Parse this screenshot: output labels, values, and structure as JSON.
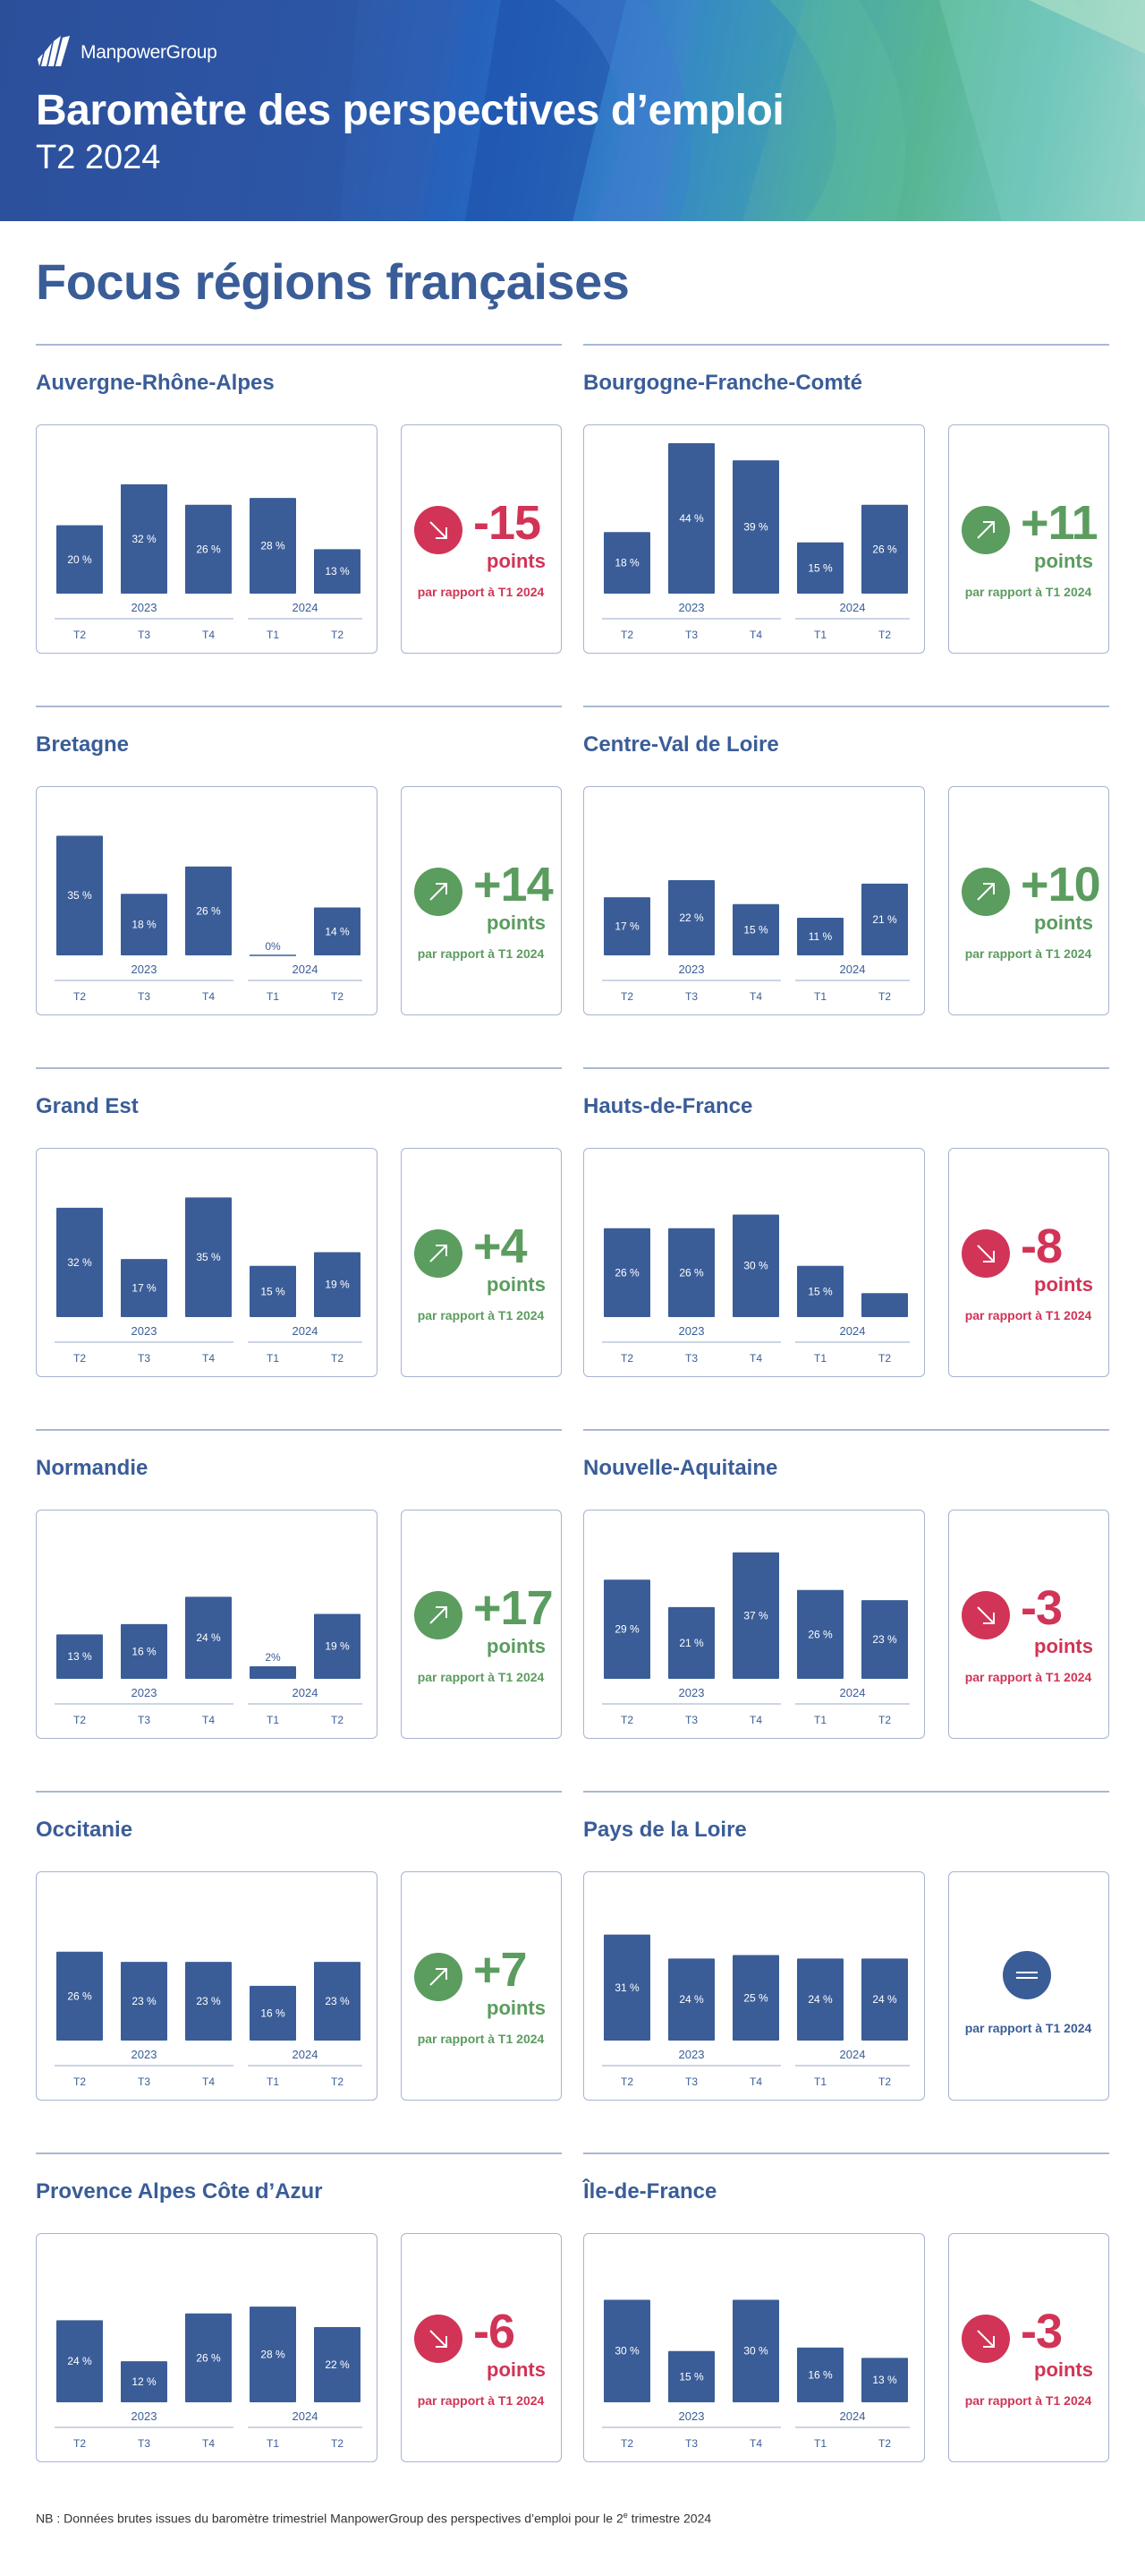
{
  "header": {
    "brand": "ManpowerGroup",
    "title": "Baromètre des perspectives d’emploi",
    "subtitle": "T2 2024"
  },
  "section_title": "Focus régions françaises",
  "colors": {
    "bar": "#3a5d98",
    "positive": "#5b9c5f",
    "negative": "#d13456",
    "neutral": "#3a5d98"
  },
  "chart_data": [
    {
      "type": "bar",
      "title": "Auvergne-Rhône-Alpes",
      "categories": [
        "T2",
        "T3",
        "T4",
        "T1",
        "T2"
      ],
      "years": [
        "2023",
        "2024"
      ],
      "values": [
        20,
        32,
        26,
        28,
        13
      ],
      "delta": "-15",
      "delta_unit": "points",
      "delta_sign": "negative",
      "comparison": "par rapport à T1 2024"
    },
    {
      "type": "bar",
      "title": "Bourgogne-Franche-Comté",
      "categories": [
        "T2",
        "T3",
        "T4",
        "T1",
        "T2"
      ],
      "years": [
        "2023",
        "2024"
      ],
      "values": [
        18,
        44,
        39,
        15,
        26
      ],
      "delta": "+11",
      "delta_unit": "points",
      "delta_sign": "positive",
      "comparison": "par rapport à T1 2024"
    },
    {
      "type": "bar",
      "title": "Bretagne",
      "categories": [
        "T2",
        "T3",
        "T4",
        "T1",
        "T2"
      ],
      "years": [
        "2023",
        "2024"
      ],
      "values": [
        35,
        18,
        26,
        0,
        14
      ],
      "delta": "+14",
      "delta_unit": "points",
      "delta_sign": "positive",
      "comparison": "par rapport à T1 2024"
    },
    {
      "type": "bar",
      "title": "Centre-Val de Loire",
      "categories": [
        "T2",
        "T3",
        "T4",
        "T1",
        "T2"
      ],
      "years": [
        "2023",
        "2024"
      ],
      "values": [
        17,
        22,
        15,
        11,
        21
      ],
      "delta": "+10",
      "delta_unit": "points",
      "delta_sign": "positive",
      "comparison": "par rapport à T1 2024"
    },
    {
      "type": "bar",
      "title": "Grand Est",
      "categories": [
        "T2",
        "T3",
        "T4",
        "T1",
        "T2"
      ],
      "years": [
        "2023",
        "2024"
      ],
      "values": [
        32,
        17,
        35,
        15,
        19
      ],
      "delta": "+4",
      "delta_unit": "points",
      "delta_sign": "positive",
      "comparison": "par rapport à T1 2024"
    },
    {
      "type": "bar",
      "title": "Hauts-de-France",
      "categories": [
        "T2",
        "T3",
        "T4",
        "T1",
        "T2"
      ],
      "years": [
        "2023",
        "2024"
      ],
      "values": [
        26,
        26,
        30,
        15,
        7
      ],
      "delta": "-8",
      "delta_unit": "points",
      "delta_sign": "negative",
      "comparison": "par rapport à T1 2024"
    },
    {
      "type": "bar",
      "title": "Normandie",
      "categories": [
        "T2",
        "T3",
        "T4",
        "T1",
        "T2"
      ],
      "years": [
        "2023",
        "2024"
      ],
      "values": [
        13,
        16,
        24,
        2,
        19
      ],
      "delta": "+17",
      "delta_unit": "points",
      "delta_sign": "positive",
      "comparison": "par rapport à T1 2024"
    },
    {
      "type": "bar",
      "title": "Nouvelle-Aquitaine",
      "categories": [
        "T2",
        "T3",
        "T4",
        "T1",
        "T2"
      ],
      "years": [
        "2023",
        "2024"
      ],
      "values": [
        29,
        21,
        37,
        26,
        23
      ],
      "delta": "-3",
      "delta_unit": "points",
      "delta_sign": "negative",
      "comparison": "par rapport à T1 2024"
    },
    {
      "type": "bar",
      "title": "Occitanie",
      "categories": [
        "T2",
        "T3",
        "T4",
        "T1",
        "T2"
      ],
      "years": [
        "2023",
        "2024"
      ],
      "values": [
        26,
        23,
        23,
        16,
        23
      ],
      "delta": "+7",
      "delta_unit": "points",
      "delta_sign": "positive",
      "comparison": "par rapport à T1 2024"
    },
    {
      "type": "bar",
      "title": "Pays de la Loire",
      "categories": [
        "T2",
        "T3",
        "T4",
        "T1",
        "T2"
      ],
      "years": [
        "2023",
        "2024"
      ],
      "values": [
        31,
        24,
        25,
        24,
        24
      ],
      "delta": "",
      "delta_unit": "",
      "delta_sign": "neutral",
      "comparison": "par rapport à T1 2024"
    },
    {
      "type": "bar",
      "title": "Provence Alpes Côte d’Azur",
      "categories": [
        "T2",
        "T3",
        "T4",
        "T1",
        "T2"
      ],
      "years": [
        "2023",
        "2024"
      ],
      "values": [
        24,
        12,
        26,
        28,
        22
      ],
      "delta": "-6",
      "delta_unit": "points",
      "delta_sign": "negative",
      "comparison": "par rapport à T1 2024"
    },
    {
      "type": "bar",
      "title": "Île-de-France",
      "categories": [
        "T2",
        "T3",
        "T4",
        "T1",
        "T2"
      ],
      "years": [
        "2023",
        "2024"
      ],
      "values": [
        30,
        15,
        30,
        16,
        13
      ],
      "delta": "-3",
      "delta_unit": "points",
      "delta_sign": "negative",
      "comparison": "par rapport à T1 2024"
    }
  ],
  "footnote": {
    "text_before": "NB : Données brutes issues du baromètre trimestriel ManpowerGroup des perspectives d’emploi pour le 2",
    "superscript": "e",
    "text_after": " trimestre 2024"
  }
}
